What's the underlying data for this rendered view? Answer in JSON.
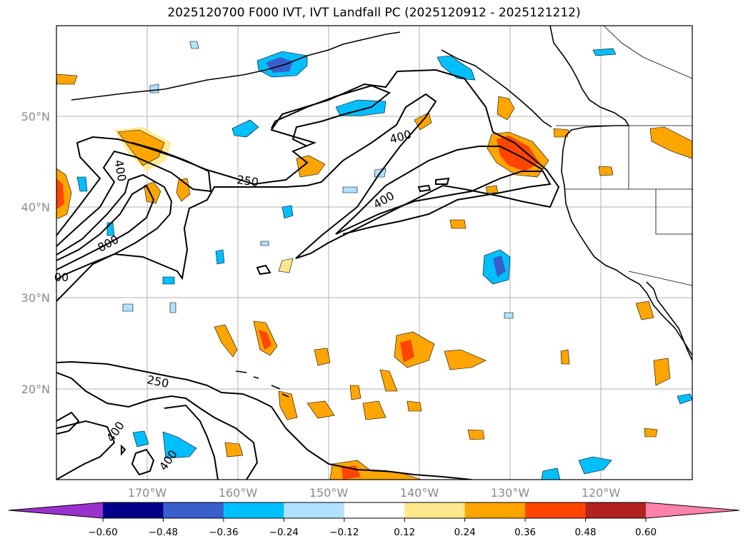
{
  "title": "2025120700 F000 IVT, IVT Landfall PC (2025120912 - 2025121212)",
  "map": {
    "lat_labels": [
      "50°N",
      "40°N",
      "30°N",
      "20°N"
    ],
    "lon_labels": [
      "170°W",
      "160°W",
      "150°W",
      "140°W",
      "130°W",
      "120°W"
    ],
    "contour_labels": [
      "400",
      "250",
      "400",
      "400",
      "800",
      "00",
      "250",
      "400",
      "400"
    ]
  },
  "colorbar": {
    "ticks": [
      "−0.60",
      "−0.48",
      "−0.36",
      "−0.24",
      "−0.12",
      "0.12",
      "0.24",
      "0.36",
      "0.48",
      "0.60"
    ],
    "colors": [
      "#9932cc",
      "#00008b",
      "#3a5fcd",
      "#00bfff",
      "#b0e2ff",
      "#ffffff",
      "#ffe88c",
      "#ffa500",
      "#ff4500",
      "#b22222",
      "#ff82ab"
    ]
  },
  "legend": {
    "low_color": "#9932cc",
    "high_color": "#ff82ab"
  }
}
